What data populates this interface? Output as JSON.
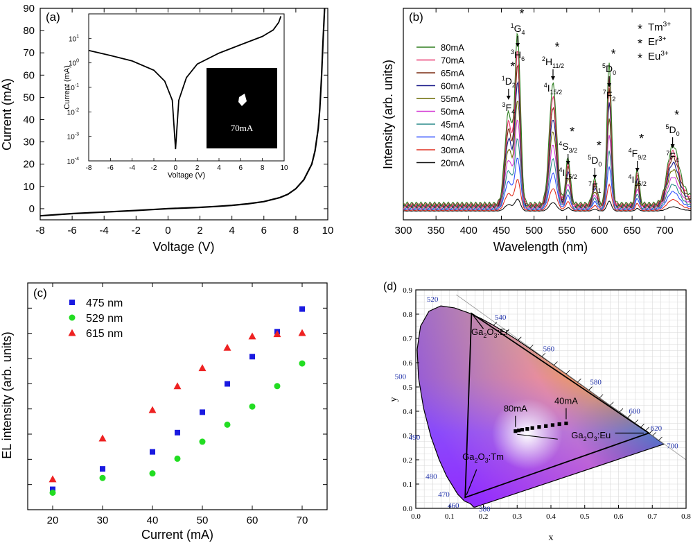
{
  "panels": [
    {
      "panel": "(a)",
      "chart_data": {
        "type": "line",
        "xlabel": "Voltage (V)",
        "ylabel": "Current (mA)",
        "xlim": [
          -8,
          10
        ],
        "ylim": [
          -5,
          90
        ],
        "xticks": [
          -8,
          -6,
          -4,
          -2,
          0,
          2,
          4,
          6,
          8,
          10
        ],
        "yticks": [
          0,
          10,
          20,
          30,
          40,
          50,
          60,
          70,
          80,
          90
        ],
        "series": [
          {
            "x": [
              -8,
              -6,
              -4,
              -2,
              -1,
              0,
              1,
              2,
              3,
              4,
              5,
              6,
              7,
              7.5,
              8,
              8.5,
              9,
              9.2,
              9.4,
              9.5,
              9.6,
              9.7,
              9.8
            ],
            "y": [
              -3.2,
              -2.2,
              -1.5,
              -0.8,
              -0.4,
              0,
              0.3,
              0.6,
              1.0,
              1.5,
              2.2,
              3.2,
              5.0,
              6.5,
              9,
              13,
              20,
              26,
              36,
              45,
              58,
              75,
              90
            ]
          }
        ],
        "inset": {
          "type": "line",
          "xlabel": "Voltage (V)",
          "ylabel": "Current (mA)",
          "yscale": "log",
          "xlim": [
            -8,
            10
          ],
          "ylim": [
            0.0001,
            100
          ],
          "xticks": [
            -8,
            -6,
            -4,
            -2,
            0,
            2,
            4,
            6,
            8,
            10
          ],
          "yticks": [
            "10^-4",
            "10^-3",
            "10^-2",
            "10^-1",
            "10^0",
            "10^1"
          ],
          "series": [
            {
              "x": [
                -8,
                -6,
                -4,
                -2,
                -1,
                -0.3,
                0,
                0.3,
                1,
                2,
                4,
                6,
                8,
                9,
                9.5,
                9.7
              ],
              "y": [
                3.2,
                2.0,
                1.2,
                0.5,
                0.18,
                0.03,
                0.0003,
                0.03,
                0.25,
                0.9,
                2.5,
                5.5,
                12,
                22,
                45,
                80
              ]
            }
          ],
          "photo_caption": "70mA"
        }
      }
    },
    {
      "panel": "(b)",
      "chart_data": {
        "type": "line",
        "xlabel": "Wavelength (nm)",
        "ylabel": "Intensity (arb. units)",
        "xlim": [
          300,
          740
        ],
        "xticks": [
          300,
          350,
          400,
          450,
          500,
          550,
          600,
          650,
          700
        ],
        "peaks": [
          461,
          475,
          529,
          552,
          593,
          615,
          658,
          712
        ],
        "series": [
          {
            "name": "80mA",
            "color": "#2e7d1f",
            "scale": 1.0
          },
          {
            "name": "70mA",
            "color": "#e8356e",
            "scale": 0.9
          },
          {
            "name": "65mA",
            "color": "#7a2a10",
            "scale": 0.82
          },
          {
            "name": "60mA",
            "color": "#1a1a8a",
            "scale": 0.73
          },
          {
            "name": "55mA",
            "color": "#6a6a00",
            "scale": 0.63
          },
          {
            "name": "50mA",
            "color": "#d43ad4",
            "scale": 0.52
          },
          {
            "name": "45mA",
            "color": "#2a8a8a",
            "scale": 0.41
          },
          {
            "name": "40mA",
            "color": "#3050ff",
            "scale": 0.3
          },
          {
            "name": "30mA",
            "color": "#e03020",
            "scale": 0.18
          },
          {
            "name": "20mA",
            "color": "#111111",
            "scale": 0.07
          }
        ],
        "legend": {
          "position": "top-left"
        },
        "ion_legend": [
          {
            "label": "Tm",
            "sup": "3+",
            "color": "#1a1ae0"
          },
          {
            "label": "Er",
            "sup": "3+",
            "color": "#22dd22"
          },
          {
            "label": "Eu",
            "sup": "3+",
            "color": "#ee2222"
          }
        ],
        "annotations": [
          {
            "upper": "1",
            "upperMain": "D",
            "upperSub": "2",
            "lower": "3",
            "lowerMain": "F",
            "lowerSub": "4",
            "color": "#1a1ae0"
          },
          {
            "upper": "1",
            "upperMain": "G",
            "upperSub": "4",
            "lower": "3",
            "lowerMain": "H",
            "lowerSub": "6",
            "color": "#1a1ae0"
          },
          {
            "upper": "2",
            "upperMain": "H",
            "upperSub": "11/2",
            "lower": "4",
            "lowerMain": "I",
            "lowerSub": "15/2",
            "color": "#22dd22"
          },
          {
            "upper": "4",
            "upperMain": "S",
            "upperSub": "3/2",
            "lower": "4",
            "lowerMain": "I",
            "lowerSub": "15/2",
            "color": "#22dd22"
          },
          {
            "upper": "5",
            "upperMain": "D",
            "upperSub": "0",
            "lower": "7",
            "lowerMain": "F",
            "lowerSub": "1",
            "color": "#ee2222"
          },
          {
            "upper": "5",
            "upperMain": "D",
            "upperSub": "0",
            "lower": "7",
            "lowerMain": "F",
            "lowerSub": "2",
            "color": "#ee2222"
          },
          {
            "upper": "4",
            "upperMain": "F",
            "upperSub": "9/2",
            "lower": "4",
            "lowerMain": "I",
            "lowerSub": "15/2",
            "color": "#22dd22"
          },
          {
            "upper": "5",
            "upperMain": "D",
            "upperSub": "0",
            "lower": "7",
            "lowerMain": "F",
            "lowerSub": "4",
            "color": "#ee2222"
          }
        ]
      }
    },
    {
      "panel": "(c)",
      "chart_data": {
        "type": "scatter",
        "xlabel": "Current (mA)",
        "ylabel": "EL intensity (arb. units)",
        "xlim": [
          15,
          75
        ],
        "ylim": [
          0,
          1
        ],
        "xticks": [
          20,
          30,
          40,
          50,
          60,
          70
        ],
        "x": [
          20,
          30,
          40,
          45,
          50,
          55,
          60,
          65,
          70
        ],
        "series": [
          {
            "name": "475 nm",
            "marker": "square",
            "color": "#1a1ae0",
            "values": [
              0.09,
              0.18,
              0.255,
              0.34,
              0.43,
              0.555,
              0.675,
              0.785,
              0.885
            ]
          },
          {
            "name": "529 nm",
            "marker": "circle",
            "color": "#22dd22",
            "values": [
              0.075,
              0.14,
              0.16,
              0.225,
              0.3,
              0.375,
              0.455,
              0.545,
              0.645
            ]
          },
          {
            "name": "615 nm",
            "marker": "triangle",
            "color": "#ee2222",
            "values": [
              0.135,
              0.315,
              0.44,
              0.545,
              0.625,
              0.715,
              0.765,
              0.775,
              0.78
            ]
          }
        ],
        "legend": {
          "position": "top-left"
        }
      }
    },
    {
      "panel": "(d)",
      "chart_data": {
        "type": "scatter",
        "xlabel": "x",
        "ylabel": "y",
        "xlim": [
          0,
          0.8
        ],
        "ylim": [
          0,
          0.9
        ],
        "xticks": [
          0.0,
          0.1,
          0.2,
          0.3,
          0.4,
          0.5,
          0.6,
          0.7,
          0.8
        ],
        "yticks": [
          0.0,
          0.1,
          0.2,
          0.3,
          0.4,
          0.5,
          0.6,
          0.7,
          0.8,
          0.9
        ],
        "locus": [
          [
            0.175,
            0.005
          ],
          [
            0.17,
            0.006
          ],
          [
            0.165,
            0.015
          ],
          [
            0.16,
            0.02
          ],
          [
            0.144,
            0.03
          ],
          [
            0.124,
            0.058
          ],
          [
            0.091,
            0.133
          ],
          [
            0.069,
            0.201
          ],
          [
            0.045,
            0.295
          ],
          [
            0.023,
            0.413
          ],
          [
            0.008,
            0.538
          ],
          [
            0.004,
            0.655
          ],
          [
            0.014,
            0.75
          ],
          [
            0.039,
            0.812
          ],
          [
            0.074,
            0.834
          ],
          [
            0.114,
            0.826
          ],
          [
            0.155,
            0.806
          ],
          [
            0.193,
            0.782
          ],
          [
            0.23,
            0.754
          ],
          [
            0.266,
            0.724
          ],
          [
            0.302,
            0.692
          ],
          [
            0.337,
            0.659
          ],
          [
            0.373,
            0.625
          ],
          [
            0.409,
            0.59
          ],
          [
            0.445,
            0.554
          ],
          [
            0.479,
            0.52
          ],
          [
            0.512,
            0.487
          ],
          [
            0.544,
            0.455
          ],
          [
            0.575,
            0.424
          ],
          [
            0.603,
            0.397
          ],
          [
            0.627,
            0.373
          ],
          [
            0.648,
            0.351
          ],
          [
            0.666,
            0.334
          ],
          [
            0.68,
            0.32
          ],
          [
            0.691,
            0.308
          ],
          [
            0.701,
            0.299
          ],
          [
            0.719,
            0.28
          ],
          [
            0.735,
            0.265
          ]
        ],
        "wavelength_labels": [
          {
            "nm": "380",
            "x": 0.175,
            "y": 0.005
          },
          {
            "nm": "460",
            "x": 0.144,
            "y": 0.03
          },
          {
            "nm": "470",
            "x": 0.124,
            "y": 0.058
          },
          {
            "nm": "480",
            "x": 0.091,
            "y": 0.133
          },
          {
            "nm": "490",
            "x": 0.045,
            "y": 0.295
          },
          {
            "nm": "500",
            "x": 0.008,
            "y": 0.538
          },
          {
            "nm": "520",
            "x": 0.074,
            "y": 0.834
          },
          {
            "nm": "540",
            "x": 0.23,
            "y": 0.754
          },
          {
            "nm": "560",
            "x": 0.373,
            "y": 0.625
          },
          {
            "nm": "580",
            "x": 0.512,
            "y": 0.487
          },
          {
            "nm": "600",
            "x": 0.627,
            "y": 0.373
          },
          {
            "nm": "620",
            "x": 0.691,
            "y": 0.308
          },
          {
            "nm": "700",
            "x": 0.735,
            "y": 0.265
          }
        ],
        "triangle": [
          [
            0.165,
            0.803
          ],
          [
            0.146,
            0.045
          ],
          [
            0.69,
            0.31
          ]
        ],
        "vertices": [
          {
            "label": "Ga",
            "sub1": "2",
            "mid": "O",
            "sub2": "3",
            "rest": ":Er",
            "x": 0.165,
            "y": 0.803
          },
          {
            "label": "Ga",
            "sub1": "2",
            "mid": "O",
            "sub2": "3",
            "rest": ":Tm",
            "x": 0.146,
            "y": 0.045
          },
          {
            "label": "Ga",
            "sub1": "2",
            "mid": "O",
            "sub2": "3",
            "rest": ":Eu",
            "x": 0.69,
            "y": 0.31
          }
        ],
        "cie_points": {
          "x": [
            0.295,
            0.305,
            0.315,
            0.33,
            0.345,
            0.365,
            0.385,
            0.405,
            0.425,
            0.445
          ],
          "y": [
            0.318,
            0.321,
            0.324,
            0.327,
            0.331,
            0.335,
            0.339,
            0.343,
            0.347,
            0.35
          ]
        },
        "point_labels": [
          "80mA",
          "40mA"
        ]
      }
    }
  ]
}
